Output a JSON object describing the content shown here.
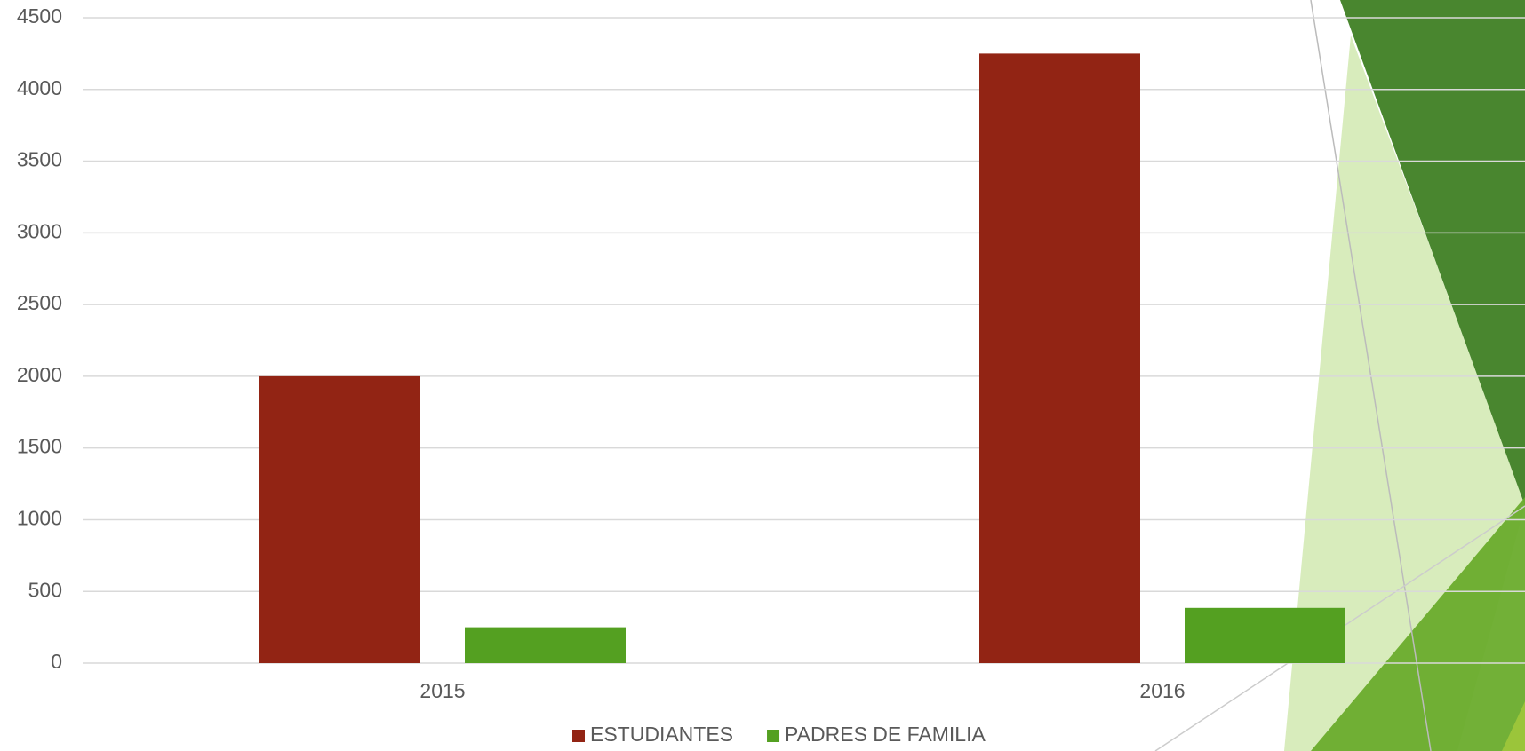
{
  "chart_data": {
    "type": "bar",
    "categories": [
      "2015",
      "2016"
    ],
    "series": [
      {
        "name": "ESTUDIANTES",
        "color": "#922414",
        "values": [
          2000,
          4250
        ]
      },
      {
        "name": "PADRES DE FAMILIA",
        "color": "#54a021",
        "values": [
          250,
          385
        ]
      }
    ],
    "ylim": [
      0,
      4500
    ],
    "yticks": [
      0,
      500,
      1000,
      1500,
      2000,
      2500,
      3000,
      3500,
      4000,
      4500
    ],
    "grid": true,
    "legend": "bottom"
  }
}
